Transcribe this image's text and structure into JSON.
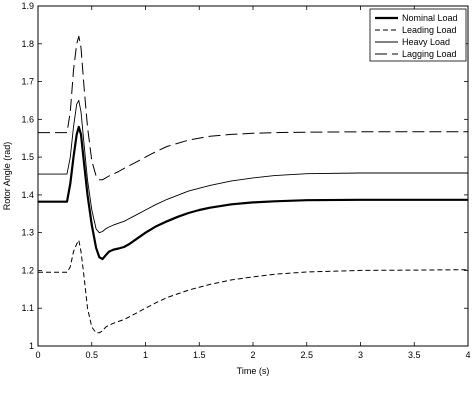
{
  "chart_data": {
    "type": "line",
    "title": "",
    "xlabel": "Time (s)",
    "ylabel": "Rotor Angle (rad)",
    "xlim": [
      0,
      4
    ],
    "ylim": [
      1,
      1.9
    ],
    "xticks": [
      "0",
      "0.5",
      "1",
      "1.5",
      "2",
      "2.5",
      "3",
      "3.5",
      "4"
    ],
    "yticks": [
      "1",
      "1.1",
      "1.2",
      "1.3",
      "1.4",
      "1.5",
      "1.6",
      "1.7",
      "1.8",
      "1.9"
    ],
    "grid": false,
    "legend_position": "top-right",
    "series": [
      {
        "name": "Nominal Load",
        "color": "#000000",
        "style": "solid-thick",
        "x": [
          0,
          0.27,
          0.3,
          0.33,
          0.36,
          0.38,
          0.4,
          0.43,
          0.46,
          0.5,
          0.54,
          0.57,
          0.6,
          0.63,
          0.66,
          0.7,
          0.75,
          0.8,
          0.85,
          0.9,
          1.0,
          1.1,
          1.2,
          1.3,
          1.4,
          1.5,
          1.6,
          1.8,
          2.0,
          2.2,
          2.5,
          3.0,
          3.5,
          4.0
        ],
        "y": [
          1.382,
          1.382,
          1.43,
          1.5,
          1.56,
          1.58,
          1.56,
          1.48,
          1.4,
          1.32,
          1.26,
          1.235,
          1.23,
          1.24,
          1.25,
          1.255,
          1.258,
          1.262,
          1.27,
          1.28,
          1.3,
          1.317,
          1.33,
          1.342,
          1.352,
          1.36,
          1.366,
          1.375,
          1.38,
          1.383,
          1.386,
          1.387,
          1.387,
          1.387
        ]
      },
      {
        "name": "Leading Load",
        "color": "#000000",
        "style": "dashed",
        "x": [
          0,
          0.27,
          0.3,
          0.33,
          0.36,
          0.38,
          0.4,
          0.43,
          0.46,
          0.5,
          0.54,
          0.57,
          0.6,
          0.63,
          0.66,
          0.7,
          0.75,
          0.8,
          0.9,
          1.0,
          1.1,
          1.2,
          1.4,
          1.6,
          1.8,
          2.0,
          2.2,
          2.5,
          3.0,
          3.5,
          4.0
        ],
        "y": [
          1.195,
          1.195,
          1.21,
          1.25,
          1.27,
          1.28,
          1.25,
          1.18,
          1.1,
          1.05,
          1.035,
          1.035,
          1.04,
          1.05,
          1.055,
          1.06,
          1.065,
          1.07,
          1.085,
          1.1,
          1.115,
          1.128,
          1.148,
          1.163,
          1.175,
          1.183,
          1.19,
          1.196,
          1.2,
          1.201,
          1.202
        ]
      },
      {
        "name": "Heavy Load",
        "color": "#000000",
        "style": "solid-thin",
        "x": [
          0,
          0.27,
          0.3,
          0.33,
          0.36,
          0.38,
          0.4,
          0.43,
          0.46,
          0.5,
          0.54,
          0.57,
          0.6,
          0.63,
          0.66,
          0.7,
          0.75,
          0.8,
          0.9,
          1.0,
          1.1,
          1.2,
          1.4,
          1.6,
          1.8,
          2.0,
          2.2,
          2.5,
          3.0,
          3.5,
          4.0
        ],
        "y": [
          1.455,
          1.455,
          1.5,
          1.58,
          1.64,
          1.65,
          1.62,
          1.53,
          1.44,
          1.36,
          1.31,
          1.3,
          1.303,
          1.31,
          1.315,
          1.32,
          1.325,
          1.33,
          1.345,
          1.36,
          1.375,
          1.388,
          1.41,
          1.425,
          1.437,
          1.445,
          1.451,
          1.456,
          1.458,
          1.458,
          1.458
        ]
      },
      {
        "name": "Lagging Load",
        "color": "#000000",
        "style": "long-dash",
        "x": [
          0,
          0.27,
          0.3,
          0.33,
          0.36,
          0.38,
          0.4,
          0.43,
          0.46,
          0.5,
          0.54,
          0.57,
          0.6,
          0.63,
          0.66,
          0.7,
          0.75,
          0.8,
          0.9,
          1.0,
          1.1,
          1.2,
          1.4,
          1.6,
          1.8,
          2.0,
          2.2,
          2.5,
          3.0,
          3.5,
          4.0
        ],
        "y": [
          1.565,
          1.565,
          1.62,
          1.73,
          1.8,
          1.82,
          1.79,
          1.68,
          1.58,
          1.49,
          1.45,
          1.44,
          1.44,
          1.445,
          1.45,
          1.455,
          1.462,
          1.47,
          1.485,
          1.5,
          1.515,
          1.528,
          1.545,
          1.555,
          1.56,
          1.563,
          1.565,
          1.566,
          1.567,
          1.567,
          1.567
        ]
      }
    ]
  }
}
